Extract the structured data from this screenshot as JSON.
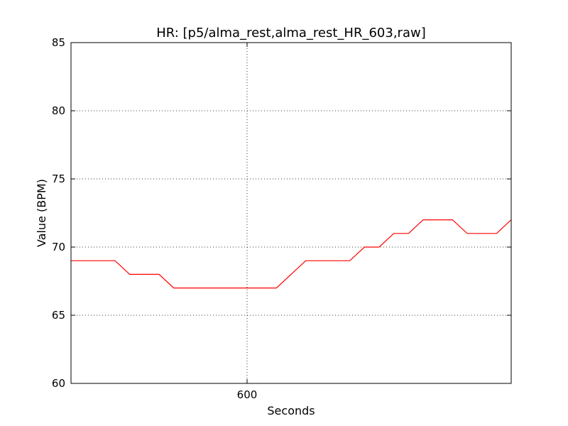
{
  "chart_data": {
    "type": "line",
    "title": "HR: [p5/alma_rest,alma_rest_HR_603,raw]",
    "xlabel": "Seconds",
    "ylabel": "Value (BPM)",
    "xlim": [
      570,
      645
    ],
    "ylim": [
      60,
      85
    ],
    "x_ticks": [
      600
    ],
    "y_ticks": [
      60,
      65,
      70,
      75,
      80,
      85
    ],
    "grid": true,
    "series": [
      {
        "color": "#ff0000",
        "x": [
          570,
          577.5,
          580,
          585,
          587.5,
          605,
          610,
          617.5,
          620,
          622.5,
          625,
          627.5,
          630,
          635,
          637.5,
          642.5,
          645
        ],
        "y": [
          69,
          69,
          68,
          68,
          67,
          67,
          69,
          69,
          70,
          70,
          71,
          71,
          72,
          72,
          71,
          71,
          72
        ]
      }
    ]
  }
}
